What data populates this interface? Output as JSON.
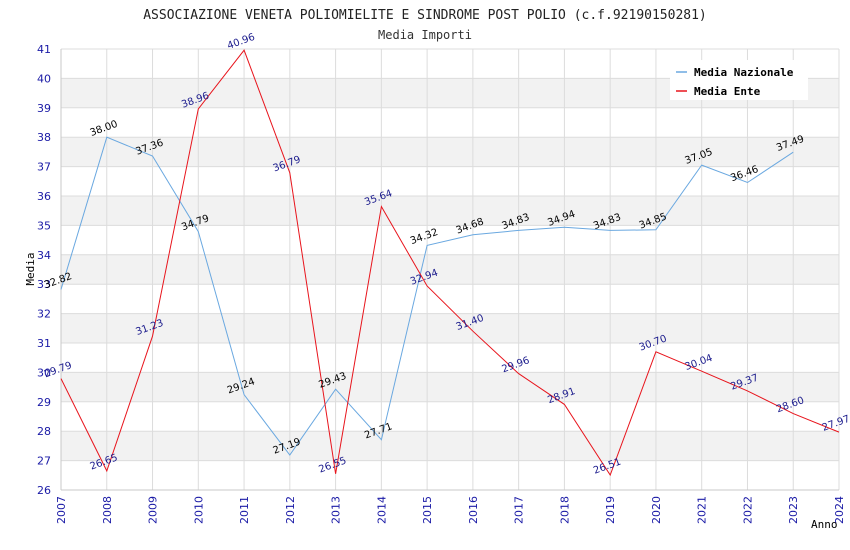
{
  "chart_data": {
    "type": "line",
    "title": "ASSOCIAZIONE VENETA POLIOMIELITE E SINDROME POST POLIO (c.f.92190150281)",
    "subtitle": "Media Importi",
    "xlabel": "Anno",
    "ylabel": "Media",
    "ylim": [
      26,
      41
    ],
    "y_ticks": [
      "26",
      "27",
      "28",
      "29",
      "30",
      "31",
      "32",
      "33",
      "34",
      "35",
      "36",
      "37",
      "38",
      "39",
      "40",
      "41"
    ],
    "categories": [
      "2007",
      "2008",
      "2009",
      "2010",
      "2011",
      "2012",
      "2013",
      "2014",
      "2015",
      "2016",
      "2017",
      "2018",
      "2019",
      "2020",
      "2021",
      "2022",
      "2023",
      "2024"
    ],
    "legend_position": "top-right",
    "grid": true,
    "series": [
      {
        "name": "Media Nazionale",
        "color": "#6aa8e0",
        "values": [
          32.82,
          38.0,
          37.36,
          34.79,
          29.24,
          27.19,
          29.43,
          27.71,
          34.32,
          34.68,
          34.83,
          34.94,
          34.83,
          34.85,
          37.05,
          36.46,
          37.49,
          null
        ],
        "labels": [
          "32.82",
          "38.00",
          "37.36",
          "34.79",
          "29.24",
          "27.19",
          "29.43",
          "27.71",
          "34.32",
          "34.68",
          "34.83",
          "34.94",
          "34.83",
          "34.85",
          "37.05",
          "36.46",
          "37.49",
          ""
        ]
      },
      {
        "name": "Media Ente",
        "color": "#e8141c",
        "values": [
          29.79,
          26.65,
          31.23,
          38.96,
          40.96,
          36.79,
          26.55,
          35.64,
          32.94,
          31.4,
          29.96,
          28.91,
          26.51,
          30.7,
          30.04,
          29.37,
          28.6,
          27.97
        ],
        "labels": [
          "29.79",
          "26.65",
          "31.23",
          "38.96",
          "40.96",
          "36.79",
          "26.55",
          "35.64",
          "32.94",
          "31.40",
          "29.96",
          "28.91",
          "26.51",
          "30.70",
          "30.04",
          "29.37",
          "28.60",
          "27.97"
        ]
      }
    ]
  }
}
